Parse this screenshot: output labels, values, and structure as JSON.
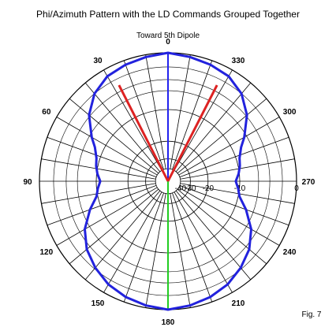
{
  "title": "Phi/Azimuth Pattern with the LD Commands Grouped Together",
  "subtitle": "Toward 5th Dipole",
  "figure_label": "Fig. 7",
  "chart_data": {
    "type": "polar",
    "title": "Phi/Azimuth Pattern with the LD Commands Grouped Together",
    "subtitle": "Toward 5th Dipole",
    "angle_direction": "counterclockwise",
    "zero_angle_position": "top",
    "angle_labels": [
      "0",
      "30",
      "60",
      "90",
      "120",
      "150",
      "180",
      "210",
      "240",
      "270",
      "300",
      "330"
    ],
    "angle_label_values": [
      0,
      30,
      60,
      90,
      120,
      150,
      180,
      210,
      240,
      270,
      300,
      330
    ],
    "radial_labels": [
      "0",
      "-10",
      "-20",
      "-30",
      "-40"
    ],
    "radial_values_db": [
      0,
      -10,
      -20,
      -30,
      -40
    ],
    "pattern": {
      "color": "#2222dd",
      "points": [
        {
          "angle": 0,
          "db": 0
        },
        {
          "angle": 10,
          "db": -0.3
        },
        {
          "angle": 20,
          "db": -0.6
        },
        {
          "angle": 30,
          "db": -1.0
        },
        {
          "angle": 40,
          "db": -2.0
        },
        {
          "angle": 50,
          "db": -3.8
        },
        {
          "angle": 60,
          "db": -6.5
        },
        {
          "angle": 65,
          "db": -8.0
        },
        {
          "angle": 72,
          "db": -9.2
        },
        {
          "angle": 78,
          "db": -9.6
        },
        {
          "angle": 84,
          "db": -10.2
        },
        {
          "angle": 90,
          "db": -11.0
        },
        {
          "angle": 96,
          "db": -10.3
        },
        {
          "angle": 102,
          "db": -9.7
        },
        {
          "angle": 110,
          "db": -7.5
        },
        {
          "angle": 120,
          "db": -5.0
        },
        {
          "angle": 130,
          "db": -3.3
        },
        {
          "angle": 140,
          "db": -2.2
        },
        {
          "angle": 150,
          "db": -1.3
        },
        {
          "angle": 160,
          "db": -0.7
        },
        {
          "angle": 170,
          "db": -0.3
        },
        {
          "angle": 180,
          "db": 0
        }
      ],
      "symmetric": true
    },
    "lines": [
      {
        "name": "forward",
        "color": "#2222ee",
        "angle": 0,
        "db": 0
      },
      {
        "name": "back",
        "color": "#22cc22",
        "angle": 180,
        "db": 0
      },
      {
        "name": "left",
        "color": "#dd2222",
        "angle": 27,
        "db": -3.0
      },
      {
        "name": "right",
        "color": "#dd2222",
        "angle": 333,
        "db": -3.0
      }
    ],
    "grid": true
  }
}
